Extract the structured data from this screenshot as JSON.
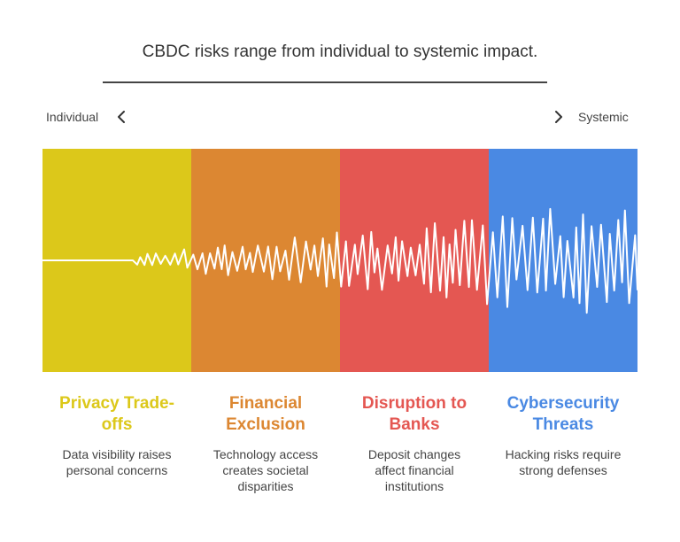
{
  "title": "CBDC risks range from individual to systemic impact.",
  "scale": {
    "left_label": "Individual",
    "right_label": "Systemic"
  },
  "icons": {
    "left": "chevron-left-icon",
    "right": "chevron-right-icon"
  },
  "categories": [
    {
      "title": "Privacy Trade-offs",
      "description": "Data visibility raises personal concerns",
      "color": "#dcc81a"
    },
    {
      "title": "Financial Exclusion",
      "description": "Technology access creates societal disparities",
      "color": "#dc8732"
    },
    {
      "title": "Disruption to Banks",
      "description": "Deposit changes affect financial institutions",
      "color": "#e45752"
    },
    {
      "title": "Cybersecurity Threats",
      "description": "Hacking risks require strong defenses",
      "color": "#4a89e3"
    }
  ]
}
